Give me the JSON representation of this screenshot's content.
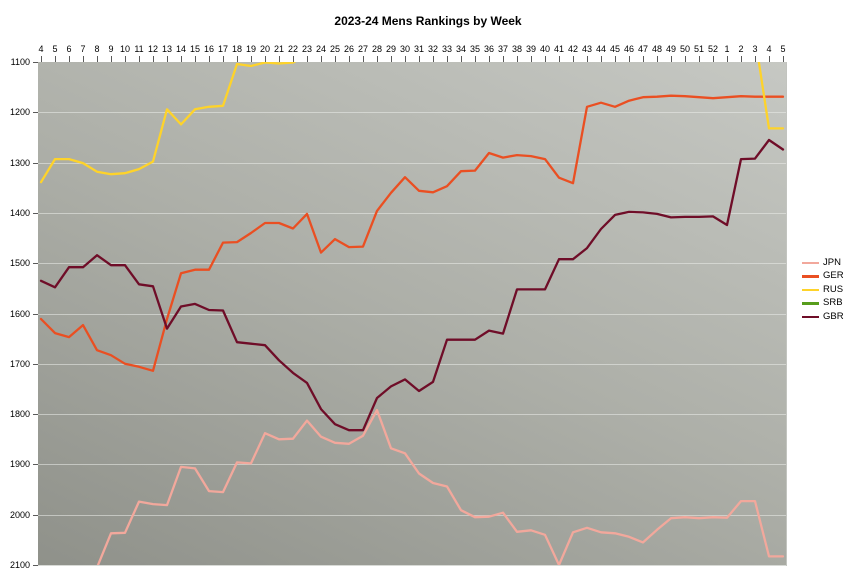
{
  "title": "2023-24 Mens Rankings by Week",
  "legend": {
    "position": "right",
    "items": [
      {
        "label": "JPN",
        "color": "#f2a89c"
      },
      {
        "label": "GER",
        "color": "#ea4f22"
      },
      {
        "label": "RUS",
        "color": "#fed32a"
      },
      {
        "label": "SRB",
        "color": "#579d1c"
      },
      {
        "label": "GBR",
        "color": "#6f0d28"
      }
    ]
  },
  "chart_data": {
    "type": "line",
    "title": "2023-24 Mens Rankings by Week",
    "xlabel": "",
    "ylabel": "",
    "x_axis_position": "top",
    "y_reversed": true,
    "ylim": [
      1100,
      2100
    ],
    "y_tick_step": 100,
    "y_tick_labels": [
      "1100",
      "1200",
      "1300",
      "1400",
      "1500",
      "1600",
      "1700",
      "1800",
      "1900",
      "2000",
      "2100"
    ],
    "grid": "horizontal",
    "legend_position": "right",
    "categories": [
      "4",
      "5",
      "6",
      "7",
      "8",
      "9",
      "10",
      "11",
      "12",
      "13",
      "14",
      "15",
      "16",
      "17",
      "18",
      "19",
      "20",
      "21",
      "22",
      "23",
      "24",
      "25",
      "26",
      "27",
      "28",
      "29",
      "30",
      "31",
      "32",
      "33",
      "34",
      "35",
      "36",
      "37",
      "38",
      "39",
      "40",
      "41",
      "42",
      "43",
      "44",
      "45",
      "46",
      "47",
      "48",
      "49",
      "50",
      "51",
      "52",
      "1",
      "2",
      "3",
      "4",
      "5"
    ],
    "note": "null = value off-scale (better than 1100 or worse than 2100), line leaves plot area",
    "series": [
      {
        "name": "JPN",
        "color": "#f2a89c",
        "values": [
          null,
          null,
          null,
          null,
          2105,
          2037,
          2036,
          1974,
          1979,
          1981,
          1905,
          1908,
          1953,
          1955,
          1896,
          1898,
          1838,
          1850,
          1849,
          1813,
          1845,
          1857,
          1859,
          1843,
          1792,
          1868,
          1878,
          1918,
          1937,
          1944,
          1991,
          2005,
          2004,
          1996,
          2034,
          2031,
          2040,
          2100,
          2035,
          2026,
          2035,
          2037,
          2044,
          2055,
          2030,
          2007,
          2005,
          2007,
          2005,
          2006,
          1973,
          1973,
          2083,
          2083
        ]
      },
      {
        "name": "GER",
        "color": "#ea4f22",
        "values": [
          1611,
          1639,
          1647,
          1623,
          1673,
          1683,
          1700,
          1706,
          1714,
          1611,
          1520,
          1513,
          1513,
          1459,
          1458,
          1440,
          1420,
          1420,
          1431,
          1402,
          1479,
          1452,
          1468,
          1467,
          1396,
          1360,
          1329,
          1356,
          1359,
          1347,
          1317,
          1316,
          1281,
          1290,
          1285,
          1287,
          1293,
          1330,
          1341,
          1189,
          1181,
          1189,
          1177,
          1170,
          1169,
          1167,
          1168,
          1170,
          1172,
          1170,
          1168,
          1169,
          1169,
          1169
        ]
      },
      {
        "name": "RUS",
        "color": "#fed32a",
        "values": [
          1339,
          1293,
          1293,
          1301,
          1318,
          1323,
          1321,
          1313,
          1298,
          1194,
          1224,
          1194,
          1189,
          1187,
          1104,
          1108,
          1101,
          1103,
          1101,
          1085,
          null,
          null,
          null,
          null,
          null,
          null,
          null,
          null,
          null,
          null,
          null,
          null,
          null,
          null,
          null,
          null,
          null,
          null,
          null,
          null,
          null,
          null,
          null,
          null,
          null,
          null,
          null,
          null,
          null,
          null,
          null,
          1050,
          1232,
          1232
        ]
      },
      {
        "name": "SRB",
        "color": "#579d1c",
        "values": [
          null,
          null,
          null,
          null,
          null,
          null,
          null,
          null,
          null,
          null,
          null,
          null,
          null,
          null,
          null,
          null,
          null,
          null,
          null,
          null,
          null,
          null,
          null,
          null,
          null,
          null,
          null,
          null,
          null,
          null,
          null,
          null,
          null,
          null,
          null,
          null,
          null,
          null,
          null,
          null,
          null,
          null,
          null,
          null,
          null,
          null,
          null,
          null,
          null,
          null,
          null,
          null,
          null,
          null
        ]
      },
      {
        "name": "GBR",
        "color": "#6f0d28",
        "values": [
          1535,
          1548,
          1508,
          1508,
          1484,
          1504,
          1504,
          1542,
          1546,
          1630,
          1586,
          1581,
          1593,
          1594,
          1657,
          1660,
          1663,
          1693,
          1718,
          1738,
          1790,
          1820,
          1832,
          1832,
          1768,
          1745,
          1731,
          1754,
          1736,
          1652,
          1652,
          1652,
          1634,
          1640,
          1552,
          1552,
          1552,
          1492,
          1492,
          1470,
          1432,
          1404,
          1398,
          1399,
          1402,
          1409,
          1408,
          1408,
          1407,
          1424,
          1293,
          1292,
          1255,
          1274
        ]
      }
    ]
  }
}
